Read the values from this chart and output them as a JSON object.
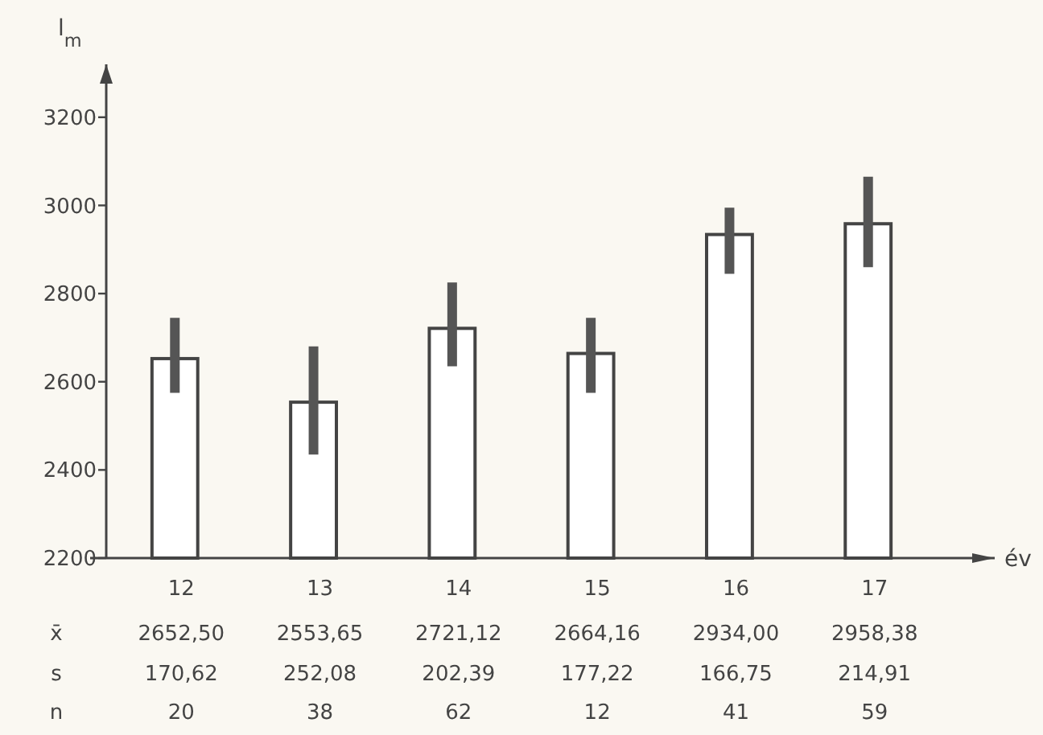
{
  "chart_data": {
    "type": "bar",
    "xlabel": "év",
    "ylabel": "l$_{m}$",
    "categories": [
      "12",
      "13",
      "14",
      "15",
      "16",
      "17"
    ],
    "values": [
      2652.5,
      2553.65,
      2721.12,
      2664.16,
      2934,
      2958.38
    ],
    "value_labels": [
      "2652,50",
      "2553,65",
      "2721,12",
      "2664,16",
      "2934,00",
      "2958,38"
    ],
    "errors": [
      [
        2575,
        2745
      ],
      [
        2435,
        2680
      ],
      [
        2635,
        2825
      ],
      [
        2575,
        2745
      ],
      [
        2845,
        2995
      ],
      [
        2860,
        3065
      ]
    ],
    "color": "#ffffff",
    "ylim": [
      2200,
      3320
    ],
    "yticks": [
      2200,
      2400,
      2600,
      2800,
      3000,
      3200
    ],
    "annotations": [
      "x̄",
      "s",
      "n",
      "170,62",
      "252,08",
      "202,39",
      "177,22",
      "166,75",
      "214,91",
      "20",
      "38",
      "62",
      "12",
      "41",
      "59"
    ]
  }
}
